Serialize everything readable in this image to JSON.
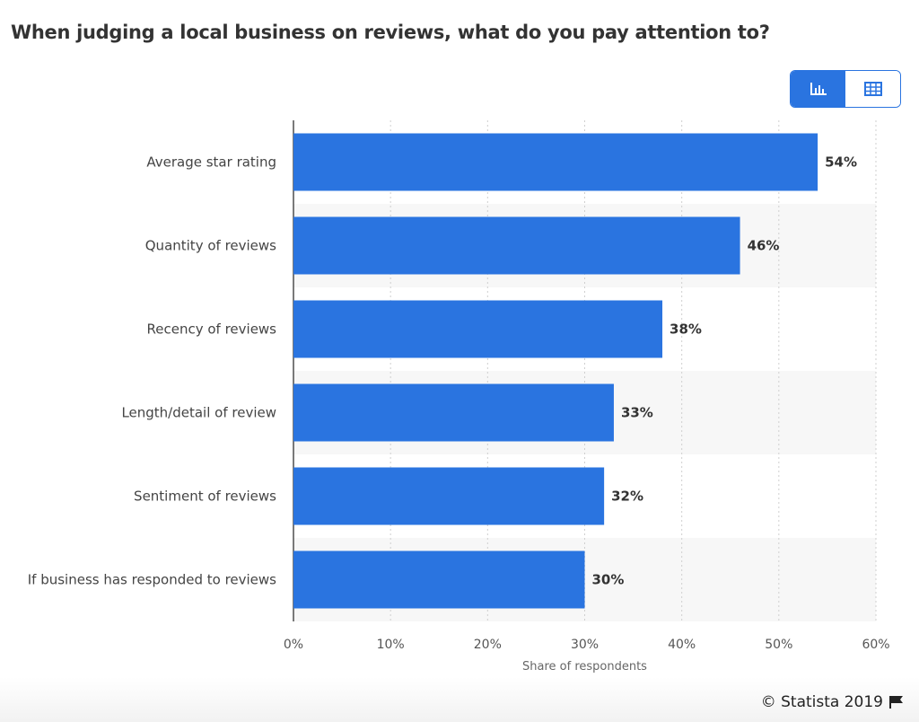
{
  "chart_data": {
    "type": "bar",
    "orientation": "horizontal",
    "title": "When judging a local business on reviews, what do you pay attention to?",
    "categories": [
      "Average star rating",
      "Quantity of reviews",
      "Recency of reviews",
      "Length/detail of review",
      "Sentiment of reviews",
      "If business has responded to reviews"
    ],
    "values": [
      54,
      46,
      38,
      33,
      32,
      30
    ],
    "value_labels": [
      "54%",
      "46%",
      "38%",
      "33%",
      "32%",
      "30%"
    ],
    "xlabel": "Share of respondents",
    "ylabel": "",
    "xlim": [
      0,
      60
    ],
    "ticks": [
      0,
      10,
      20,
      30,
      40,
      50,
      60
    ],
    "tick_labels": [
      "0%",
      "10%",
      "20%",
      "30%",
      "40%",
      "50%",
      "60%"
    ],
    "grid": true,
    "bar_color": "#2a74e0"
  },
  "view_toggle": {
    "chart_icon": "bar-chart-icon",
    "table_icon": "table-icon",
    "accent": "#2a74e0"
  },
  "footer": {
    "credit": "© Statista 2019",
    "flag_icon": "flag-icon"
  }
}
